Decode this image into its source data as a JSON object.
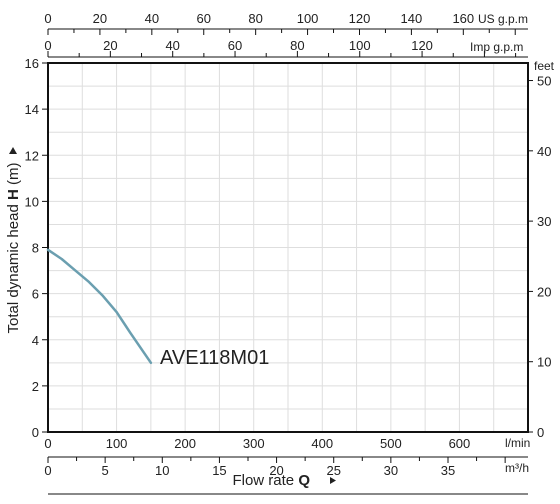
{
  "chart_data": {
    "type": "line",
    "ylabel_prefix": "Total dynamic head ",
    "ylabel_symbol": "H",
    "ylabel_unit": " (m)",
    "xlabel_prefix": "Flow rate ",
    "xlabel_symbol": "Q",
    "units": {
      "lmin": "l/min",
      "m3h": "m³/h",
      "usgpm": "US g.p.m",
      "impgpm": "Imp g.p.m",
      "feet": "feet"
    },
    "xlim": [
      0,
      700
    ],
    "ylim": [
      0,
      16
    ],
    "x_ticks_lmin": [
      "0",
      "100",
      "200",
      "300",
      "400",
      "500",
      "600"
    ],
    "x_ticks_m3h": [
      "0",
      "5",
      "10",
      "15",
      "20",
      "25",
      "30",
      "35"
    ],
    "top_ticks_usgpm": [
      "0",
      "20",
      "40",
      "60",
      "80",
      "100",
      "120",
      "140",
      "160"
    ],
    "top_ticks_impgpm": [
      "0",
      "20",
      "40",
      "60",
      "80",
      "100",
      "120"
    ],
    "y_ticks_m": [
      "0",
      "2",
      "4",
      "6",
      "8",
      "10",
      "12",
      "14",
      "16"
    ],
    "y_ticks_feet": [
      "0",
      "10",
      "20",
      "30",
      "40",
      "50"
    ],
    "grid": true,
    "series": [
      {
        "name": "AVE118M01",
        "color": "#6b9fb0",
        "x": [
          0,
          20,
          40,
          60,
          80,
          100,
          120,
          150
        ],
        "y": [
          7.9,
          7.5,
          7.0,
          6.5,
          5.9,
          5.2,
          4.3,
          3.0
        ]
      }
    ]
  }
}
